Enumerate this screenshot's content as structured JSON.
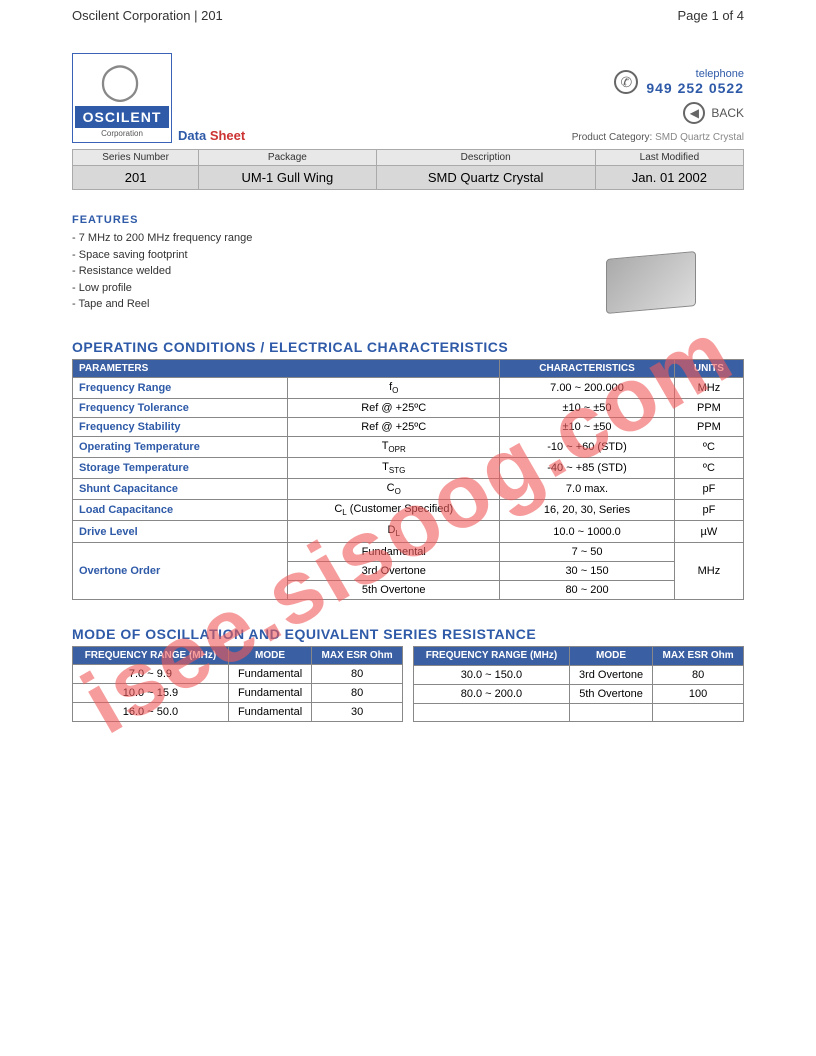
{
  "page_header": {
    "left": "Oscilent Corporation | 201",
    "right": "Page 1 of 4"
  },
  "logo": {
    "name": "OSCILENT",
    "sub": "Corporation"
  },
  "datasheet_label": {
    "data": "Data",
    "sheet": "Sheet"
  },
  "contact": {
    "tel_label": "telephone",
    "tel_number": "949 252 0522",
    "back": "BACK",
    "product_category_label": "Product Category:",
    "product_category_value": "SMD Quartz Crystal"
  },
  "summary": {
    "headers": [
      "Series Number",
      "Package",
      "Description",
      "Last Modified"
    ],
    "row": [
      "201",
      "UM-1 Gull Wing",
      "SMD Quartz Crystal",
      "Jan. 01 2002"
    ]
  },
  "features": {
    "title": "FEATURES",
    "items": [
      "7 MHz to 200 MHz frequency range",
      "Space saving footprint",
      "Resistance welded",
      "Low profile",
      "Tape and Reel"
    ]
  },
  "char_section_title": "OPERATING CONDITIONS / ELECTRICAL CHARACTERISTICS",
  "char_headers": {
    "p": "PARAMETERS",
    "c": "CHARACTERISTICS",
    "u": "UNITS"
  },
  "char_rows": {
    "r0": {
      "p": "Frequency Range",
      "s1": "f",
      "s2": "O",
      "c": "7.00 ~ 200.000",
      "u": "MHz"
    },
    "r1": {
      "p": "Frequency Tolerance",
      "s": "Ref @ +25ºC",
      "c": "±10 ~ ±50",
      "u": "PPM"
    },
    "r2": {
      "p": "Frequency Stability",
      "s": "Ref @ +25ºC",
      "c": "±10 ~ ±50",
      "u": "PPM"
    },
    "r3": {
      "p": "Operating Temperature",
      "s1": "T",
      "s2": "OPR",
      "c": "-10 ~ +60 (STD)",
      "u": "ºC"
    },
    "r4": {
      "p": "Storage Temperature",
      "s1": "T",
      "s2": "STG",
      "c": "-40 ~ +85 (STD)",
      "u": "ºC"
    },
    "r5": {
      "p": "Shunt Capacitance",
      "s1": "C",
      "s2": "O",
      "c": "7.0 max.",
      "u": "pF"
    },
    "r6": {
      "p": "Load Capacitance",
      "s1": "C",
      "s2": "L",
      "sx": " (Customer Specified)",
      "c": "16, 20, 30, Series",
      "u": "pF"
    },
    "r7": {
      "p": "Drive Level",
      "s1": "D",
      "s2": "L",
      "c": "10.0 ~ 1000.0",
      "u": "µW"
    },
    "r8": {
      "p": "Overtone Order",
      "s_a": "Fundamental",
      "c_a": "7 ~ 50",
      "s_b": "3rd Overtone",
      "c_b": "30 ~ 150",
      "s_c": "5th Overtone",
      "c_c": "80 ~ 200",
      "u": "MHz"
    }
  },
  "esr_section_title": "MODE OF OSCILLATION AND EQUIVALENT SERIES RESISTANCE",
  "esr_headers": {
    "f": "FREQUENCY RANGE (MHz)",
    "m": "MODE",
    "e": "MAX ESR Ohm"
  },
  "esr_left": {
    "r0": {
      "f": "7.0 ~ 9.9",
      "m": "Fundamental",
      "e": "80"
    },
    "r1": {
      "f": "10.0 ~ 15.9",
      "m": "Fundamental",
      "e": "80"
    },
    "r2": {
      "f": "16.0 ~ 50.0",
      "m": "Fundamental",
      "e": "30"
    }
  },
  "esr_right": {
    "r0": {
      "f": "30.0 ~ 150.0",
      "m": "3rd Overtone",
      "e": "80"
    },
    "r1": {
      "f": "80.0 ~ 200.0",
      "m": "5th Overtone",
      "e": "100"
    },
    "r2": {
      "f": "",
      "m": "",
      "e": ""
    }
  },
  "watermark": "isee.sisoog.com"
}
